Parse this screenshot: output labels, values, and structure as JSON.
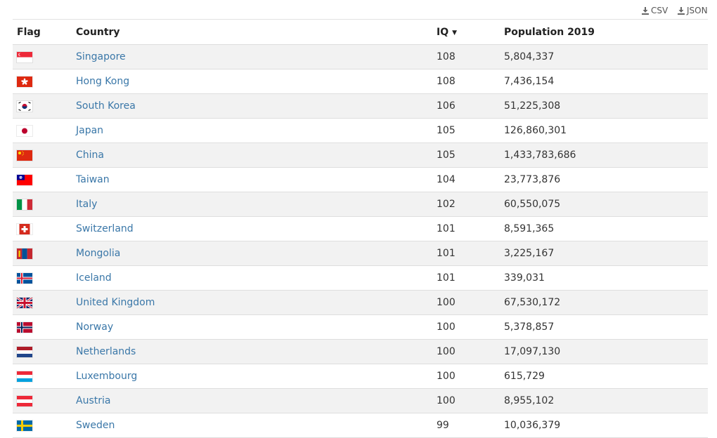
{
  "toolbar": {
    "csv_label": "CSV",
    "json_label": "JSON"
  },
  "table": {
    "headers": {
      "flag": "Flag",
      "country": "Country",
      "iq": "IQ",
      "population": "Population 2019"
    },
    "sort": {
      "column": "iq",
      "direction": "descending",
      "icon": "caret-down-icon"
    },
    "rows": [
      {
        "flag": "singapore",
        "country": "Singapore",
        "iq": "108",
        "population": "5,804,337"
      },
      {
        "flag": "hong-kong",
        "country": "Hong Kong",
        "iq": "108",
        "population": "7,436,154"
      },
      {
        "flag": "south-korea",
        "country": "South Korea",
        "iq": "106",
        "population": "51,225,308"
      },
      {
        "flag": "japan",
        "country": "Japan",
        "iq": "105",
        "population": "126,860,301"
      },
      {
        "flag": "china",
        "country": "China",
        "iq": "105",
        "population": "1,433,783,686"
      },
      {
        "flag": "taiwan",
        "country": "Taiwan",
        "iq": "104",
        "population": "23,773,876"
      },
      {
        "flag": "italy",
        "country": "Italy",
        "iq": "102",
        "population": "60,550,075"
      },
      {
        "flag": "switzerland",
        "country": "Switzerland",
        "iq": "101",
        "population": "8,591,365"
      },
      {
        "flag": "mongolia",
        "country": "Mongolia",
        "iq": "101",
        "population": "3,225,167"
      },
      {
        "flag": "iceland",
        "country": "Iceland",
        "iq": "101",
        "population": "339,031"
      },
      {
        "flag": "united-kingdom",
        "country": "United Kingdom",
        "iq": "100",
        "population": "67,530,172"
      },
      {
        "flag": "norway",
        "country": "Norway",
        "iq": "100",
        "population": "5,378,857"
      },
      {
        "flag": "netherlands",
        "country": "Netherlands",
        "iq": "100",
        "population": "17,097,130"
      },
      {
        "flag": "luxembourg",
        "country": "Luxembourg",
        "iq": "100",
        "population": "615,729"
      },
      {
        "flag": "austria",
        "country": "Austria",
        "iq": "100",
        "population": "8,955,102"
      },
      {
        "flag": "sweden",
        "country": "Sweden",
        "iq": "99",
        "population": "10,036,379"
      }
    ]
  },
  "colors": {
    "link": "#3a77a8",
    "row_stripe": "#f2f2f2",
    "border": "#dedede"
  }
}
